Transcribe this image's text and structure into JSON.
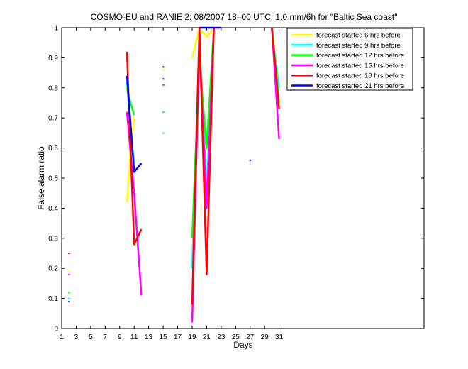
{
  "chart_data": {
    "type": "line",
    "title": "COSMO-EU and RANIE 2: 08/2007 18–00 UTC, 1.0 mm/6h for \"Baltic Sea coast\"",
    "xlabel": "Days",
    "ylabel": "False alarm ratio",
    "xlim": [
      1,
      51
    ],
    "ylim": [
      0,
      1
    ],
    "xticks": [
      1,
      3,
      5,
      7,
      9,
      11,
      13,
      15,
      17,
      19,
      21,
      23,
      25,
      27,
      29,
      31
    ],
    "yticks": [
      0,
      0.1,
      0.2,
      0.3,
      0.4,
      0.5,
      0.6,
      0.7,
      0.8,
      0.9,
      1
    ],
    "ytick_labels": [
      "0",
      "0.1",
      "0.2",
      "0.3",
      "0.4",
      "0.5",
      "0.6",
      "0.7",
      "0.8",
      "0.9",
      "1"
    ],
    "grid": false,
    "legend_position": "top-right",
    "series": [
      {
        "name": "forecast started 6 hrs before",
        "color": "#ffff00",
        "segments": [
          [
            [
              2,
              0.19
            ]
          ],
          [
            [
              10,
              0.42
            ],
            [
              10.5,
              0.6
            ],
            [
              11,
              0.7
            ]
          ],
          [
            [
              15,
              0.86
            ]
          ],
          [
            [
              19,
              0.9
            ],
            [
              20,
              1.0
            ],
            [
              21,
              0.97
            ],
            [
              22,
              1.0
            ]
          ],
          [
            [
              30,
              1.0
            ],
            [
              31,
              0.8
            ]
          ]
        ]
      },
      {
        "name": "forecast started 9 hrs before",
        "color": "#00ffff",
        "segments": [
          [
            [
              2,
              0.1
            ]
          ],
          [
            [
              10,
              0.82
            ],
            [
              10.5,
              0.65
            ],
            [
              11,
              0.55
            ]
          ],
          [
            [
              15,
              0.65
            ]
          ],
          [
            [
              19,
              0.2
            ],
            [
              19.5,
              0.6
            ],
            [
              20,
              0.98
            ],
            [
              21,
              0.45
            ],
            [
              22,
              1.0
            ]
          ],
          [
            [
              30,
              0.99
            ],
            [
              31,
              0.8
            ]
          ]
        ]
      },
      {
        "name": "forecast started 12 hrs before",
        "color": "#00ff00",
        "segments": [
          [
            [
              2,
              0.12
            ]
          ],
          [
            [
              10,
              0.8
            ],
            [
              10.5,
              0.75
            ],
            [
              11,
              0.71
            ]
          ],
          [
            [
              15,
              0.72
            ]
          ],
          [
            [
              19,
              0.3
            ],
            [
              20,
              0.9
            ],
            [
              21,
              0.6
            ],
            [
              22,
              1.0
            ]
          ],
          [
            [
              30,
              1.0
            ],
            [
              31,
              0.75
            ]
          ]
        ]
      },
      {
        "name": "forecast started 15 hrs before",
        "color": "#ff00ff",
        "segments": [
          [
            [
              2,
              0.18
            ]
          ],
          [
            [
              10,
              0.72
            ],
            [
              11,
              0.45
            ],
            [
              12,
              0.11
            ]
          ],
          [
            [
              15,
              0.81
            ]
          ],
          [
            [
              19,
              0.02
            ],
            [
              20,
              0.95
            ],
            [
              21,
              0.4
            ],
            [
              22,
              1.0
            ]
          ],
          [
            [
              30,
              1.0
            ],
            [
              31,
              0.63
            ]
          ]
        ]
      },
      {
        "name": "forecast started 18 hrs before",
        "color": "#ff0000",
        "segments": [
          [
            [
              2,
              0.25
            ]
          ],
          [
            [
              10,
              0.92
            ],
            [
              11,
              0.28
            ],
            [
              12,
              0.33
            ]
          ],
          [
            [
              15,
              0.87
            ]
          ],
          [
            [
              19,
              0.08
            ],
            [
              20,
              1.0
            ],
            [
              21,
              0.18
            ],
            [
              22,
              1.0
            ]
          ],
          [
            [
              30,
              1.0
            ],
            [
              31,
              0.73
            ]
          ]
        ]
      },
      {
        "name": "forecast started 21 hrs before",
        "color": "#0000ff",
        "segments": [
          [
            [
              2,
              0.09
            ]
          ],
          [
            [
              10,
              0.84
            ],
            [
              11,
              0.52
            ],
            [
              12,
              0.55
            ]
          ],
          [
            [
              15,
              0.83
            ]
          ],
          [
            [
              20,
              1.0
            ],
            [
              22,
              1.0
            ],
            [
              23,
              1.0
            ]
          ],
          [
            [
              27,
              0.56
            ]
          ]
        ]
      }
    ]
  }
}
